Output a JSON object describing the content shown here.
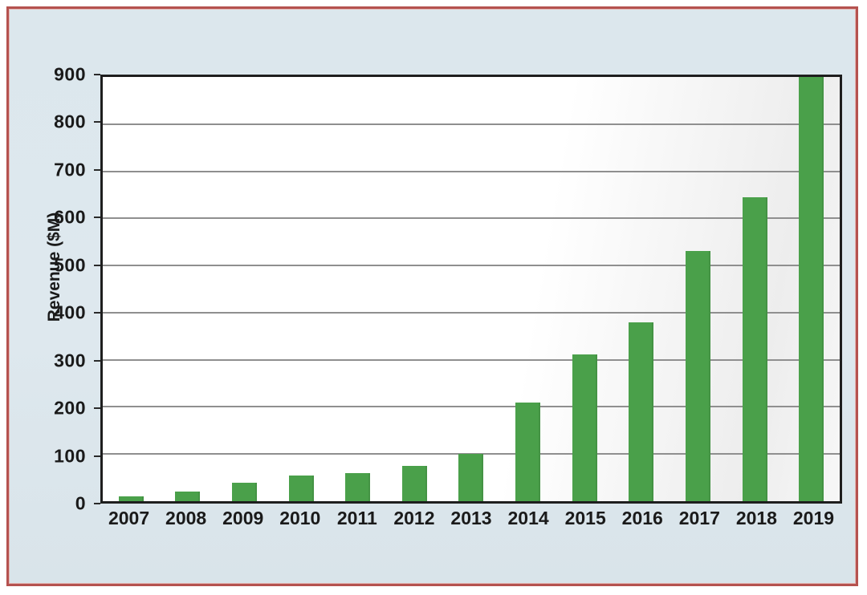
{
  "panel": {
    "border_color": "#b5524f",
    "background_color": "#dde8ee"
  },
  "chart_data": {
    "type": "bar",
    "title": "",
    "xlabel": "",
    "ylabel": "Revenue ($M)",
    "categories": [
      "2007",
      "2008",
      "2009",
      "2010",
      "2011",
      "2012",
      "2013",
      "2014",
      "2015",
      "2016",
      "2017",
      "2018",
      "2019"
    ],
    "values": [
      10,
      20,
      40,
      55,
      60,
      75,
      100,
      210,
      312,
      380,
      530,
      645,
      900
    ],
    "ylim": [
      0,
      900
    ],
    "yticks": [
      0,
      100,
      200,
      300,
      400,
      500,
      600,
      700,
      800,
      900
    ],
    "grid": "horizontal",
    "legend_position": "none",
    "bar_color": "#4aa04a",
    "gridline_color": "#8f8f8f",
    "axis_border_color": "#1e1e1e",
    "text_color": "#1a1a1a"
  }
}
